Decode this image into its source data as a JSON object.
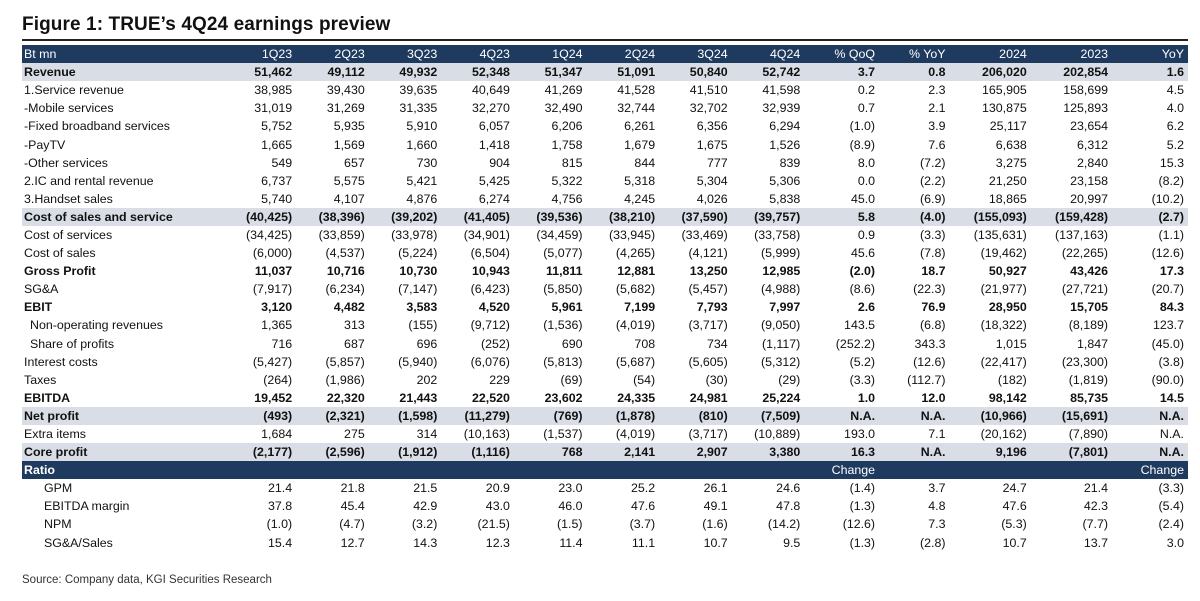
{
  "title": "Figure 1: TRUE’s 4Q24 earnings preview",
  "source": "Source: Company data, KGI Securities Research",
  "columns": [
    "Bt mn",
    "1Q23",
    "2Q23",
    "3Q23",
    "4Q23",
    "1Q24",
    "2Q24",
    "3Q24",
    "4Q24",
    "% QoQ",
    "% YoY",
    "2024",
    "2023",
    "YoY"
  ],
  "rows": [
    {
      "label": "Revenue",
      "bold": true,
      "shade": true,
      "values": [
        "51,462",
        "49,112",
        "49,932",
        "52,348",
        "51,347",
        "51,091",
        "50,840",
        "52,742",
        "3.7",
        "0.8",
        "206,020",
        "202,854",
        "1.6"
      ]
    },
    {
      "label": "1.Service revenue",
      "values": [
        "38,985",
        "39,430",
        "39,635",
        "40,649",
        "41,269",
        "41,528",
        "41,510",
        "41,598",
        "0.2",
        "2.3",
        "165,905",
        "158,699",
        "4.5"
      ]
    },
    {
      "label": "-Mobile services",
      "values": [
        "31,019",
        "31,269",
        "31,335",
        "32,270",
        "32,490",
        "32,744",
        "32,702",
        "32,939",
        "0.7",
        "2.1",
        "130,875",
        "125,893",
        "4.0"
      ]
    },
    {
      "label": "-Fixed broadband services",
      "values": [
        "5,752",
        "5,935",
        "5,910",
        "6,057",
        "6,206",
        "6,261",
        "6,356",
        "6,294",
        "(1.0)",
        "3.9",
        "25,117",
        "23,654",
        "6.2"
      ]
    },
    {
      "label": "-PayTV",
      "values": [
        "1,665",
        "1,569",
        "1,660",
        "1,418",
        "1,758",
        "1,679",
        "1,675",
        "1,526",
        "(8.9)",
        "7.6",
        "6,638",
        "6,312",
        "5.2"
      ]
    },
    {
      "label": "-Other services",
      "values": [
        "549",
        "657",
        "730",
        "904",
        "815",
        "844",
        "777",
        "839",
        "8.0",
        "(7.2)",
        "3,275",
        "2,840",
        "15.3"
      ]
    },
    {
      "label": "2.IC and rental revenue",
      "values": [
        "6,737",
        "5,575",
        "5,421",
        "5,425",
        "5,322",
        "5,318",
        "5,304",
        "5,306",
        "0.0",
        "(2.2)",
        "21,250",
        "23,158",
        "(8.2)"
      ]
    },
    {
      "label": "3.Handset sales",
      "values": [
        "5,740",
        "4,107",
        "4,876",
        "6,274",
        "4,756",
        "4,245",
        "4,026",
        "5,838",
        "45.0",
        "(6.9)",
        "18,865",
        "20,997",
        "(10.2)"
      ]
    },
    {
      "label": "Cost of sales and service",
      "bold": true,
      "shade": true,
      "values": [
        "(40,425)",
        "(38,396)",
        "(39,202)",
        "(41,405)",
        "(39,536)",
        "(38,210)",
        "(37,590)",
        "(39,757)",
        "5.8",
        "(4.0)",
        "(155,093)",
        "(159,428)",
        "(2.7)"
      ]
    },
    {
      "label": "Cost of services",
      "values": [
        "(34,425)",
        "(33,859)",
        "(33,978)",
        "(34,901)",
        "(34,459)",
        "(33,945)",
        "(33,469)",
        "(33,758)",
        "0.9",
        "(3.3)",
        "(135,631)",
        "(137,163)",
        "(1.1)"
      ]
    },
    {
      "label": "Cost of sales",
      "values": [
        "(6,000)",
        "(4,537)",
        "(5,224)",
        "(6,504)",
        "(5,077)",
        "(4,265)",
        "(4,121)",
        "(5,999)",
        "45.6",
        "(7.8)",
        "(19,462)",
        "(22,265)",
        "(12.6)"
      ]
    },
    {
      "label": "Gross Profit",
      "bold": true,
      "values": [
        "11,037",
        "10,716",
        "10,730",
        "10,943",
        "11,811",
        "12,881",
        "13,250",
        "12,985",
        "(2.0)",
        "18.7",
        "50,927",
        "43,426",
        "17.3"
      ]
    },
    {
      "label": "SG&A",
      "values": [
        "(7,917)",
        "(6,234)",
        "(7,147)",
        "(6,423)",
        "(5,850)",
        "(5,682)",
        "(5,457)",
        "(4,988)",
        "(8.6)",
        "(22.3)",
        "(21,977)",
        "(27,721)",
        "(20.7)"
      ]
    },
    {
      "label": "EBIT",
      "bold": true,
      "values": [
        "3,120",
        "4,482",
        "3,583",
        "4,520",
        "5,961",
        "7,199",
        "7,793",
        "7,997",
        "2.6",
        "76.9",
        "28,950",
        "15,705",
        "84.3"
      ]
    },
    {
      "label": " Non-operating revenues",
      "values": [
        "1,365",
        "313",
        "(155)",
        "(9,712)",
        "(1,536)",
        "(4,019)",
        "(3,717)",
        "(9,050)",
        "143.5",
        "(6.8)",
        "(18,322)",
        "(8,189)",
        "123.7"
      ]
    },
    {
      "label": " Share of profits",
      "values": [
        "716",
        "687",
        "696",
        "(252)",
        "690",
        "708",
        "734",
        "(1,117)",
        "(252.2)",
        "343.3",
        "1,015",
        "1,847",
        "(45.0)"
      ]
    },
    {
      "label": "Interest costs",
      "values": [
        "(5,427)",
        "(5,857)",
        "(5,940)",
        "(6,076)",
        "(5,813)",
        "(5,687)",
        "(5,605)",
        "(5,312)",
        "(5.2)",
        "(12.6)",
        "(22,417)",
        "(23,300)",
        "(3.8)"
      ]
    },
    {
      "label": "Taxes",
      "values": [
        "(264)",
        "(1,986)",
        "202",
        "229",
        "(69)",
        "(54)",
        "(30)",
        "(29)",
        "(3.3)",
        "(112.7)",
        "(182)",
        "(1,819)",
        "(90.0)"
      ]
    },
    {
      "label": "EBITDA",
      "bold": true,
      "values": [
        "19,452",
        "22,320",
        "21,443",
        "22,520",
        "23,602",
        "24,335",
        "24,981",
        "25,224",
        "1.0",
        "12.0",
        "98,142",
        "85,735",
        "14.5"
      ]
    },
    {
      "label": "Net profit",
      "bold": true,
      "shade": true,
      "values": [
        "(493)",
        "(2,321)",
        "(1,598)",
        "(11,279)",
        "(769)",
        "(1,878)",
        "(810)",
        "(7,509)",
        "N.A.",
        "N.A.",
        "(10,966)",
        "(15,691)",
        "N.A."
      ]
    },
    {
      "label": "Extra items",
      "values": [
        "1,684",
        "275",
        "314",
        "(10,163)",
        "(1,537)",
        "(4,019)",
        "(3,717)",
        "(10,889)",
        "193.0",
        "7.1",
        "(20,162)",
        "(7,890)",
        "N.A."
      ]
    },
    {
      "label": "Core profit",
      "bold": true,
      "shade": true,
      "values": [
        "(2,177)",
        "(2,596)",
        "(1,912)",
        "(1,116)",
        "768",
        "2,141",
        "2,907",
        "3,380",
        "16.3",
        "N.A.",
        "9,196",
        "(7,801)",
        "N.A."
      ]
    }
  ],
  "ratio_header": {
    "label": "Ratio",
    "values": [
      "",
      "",
      "",
      "",
      "",
      "",
      "",
      "",
      "Change",
      "",
      "",
      "",
      "Change"
    ]
  },
  "ratio_rows": [
    {
      "label": "GPM",
      "values": [
        "21.4",
        "21.8",
        "21.5",
        "20.9",
        "23.0",
        "25.2",
        "26.1",
        "24.6",
        "(1.4)",
        "3.7",
        "24.7",
        "21.4",
        "(3.3)"
      ]
    },
    {
      "label": "EBITDA margin",
      "values": [
        "37.8",
        "45.4",
        "42.9",
        "43.0",
        "46.0",
        "47.6",
        "49.1",
        "47.8",
        "(1.3)",
        "4.8",
        "47.6",
        "42.3",
        "(5.4)"
      ]
    },
    {
      "label": "NPM",
      "values": [
        "(1.0)",
        "(4.7)",
        "(3.2)",
        "(21.5)",
        "(1.5)",
        "(3.7)",
        "(1.6)",
        "(14.2)",
        "(12.6)",
        "7.3",
        "(5.3)",
        "(7.7)",
        "(2.4)"
      ]
    },
    {
      "label": "SG&A/Sales",
      "values": [
        "15.4",
        "12.7",
        "14.3",
        "12.3",
        "11.4",
        "11.1",
        "10.7",
        "9.5",
        "(1.3)",
        "(2.8)",
        "10.7",
        "13.7",
        "3.0"
      ]
    }
  ],
  "colors": {
    "header_bg": "#1f3a5f",
    "shade_bg": "#d9dee6"
  }
}
